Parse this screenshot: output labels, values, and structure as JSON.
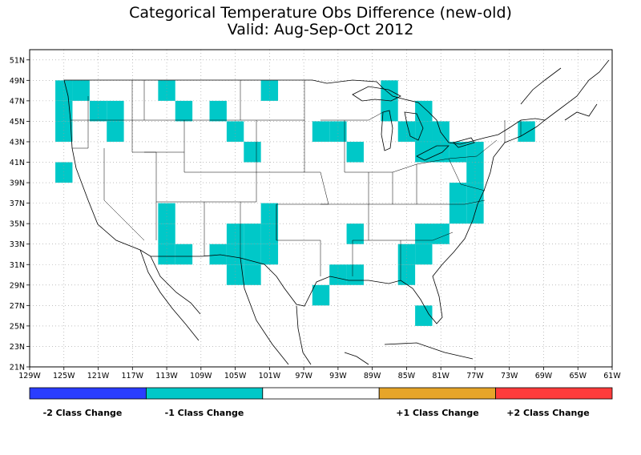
{
  "title": {
    "line1": "Categorical Temperature Obs Difference (new-old)",
    "line2": "Valid: Aug-Sep-Oct 2012"
  },
  "axes": {
    "lon_min": -129,
    "lon_max": -61,
    "lat_min": 21,
    "lat_max": 52,
    "x_ticks": [
      {
        "value": -129,
        "label": "129W"
      },
      {
        "value": -125,
        "label": "125W"
      },
      {
        "value": -121,
        "label": "121W"
      },
      {
        "value": -117,
        "label": "117W"
      },
      {
        "value": -113,
        "label": "113W"
      },
      {
        "value": -109,
        "label": "109W"
      },
      {
        "value": -105,
        "label": "105W"
      },
      {
        "value": -101,
        "label": "101W"
      },
      {
        "value": -97,
        "label": "97W"
      },
      {
        "value": -93,
        "label": "93W"
      },
      {
        "value": -89,
        "label": "89W"
      },
      {
        "value": -85,
        "label": "85W"
      },
      {
        "value": -81,
        "label": "81W"
      },
      {
        "value": -77,
        "label": "77W"
      },
      {
        "value": -73,
        "label": "73W"
      },
      {
        "value": -69,
        "label": "69W"
      },
      {
        "value": -65,
        "label": "65W"
      },
      {
        "value": -61,
        "label": "61W"
      }
    ],
    "y_ticks": [
      {
        "value": 21,
        "label": "21N"
      },
      {
        "value": 23,
        "label": "23N"
      },
      {
        "value": 25,
        "label": "25N"
      },
      {
        "value": 27,
        "label": "27N"
      },
      {
        "value": 29,
        "label": "29N"
      },
      {
        "value": 31,
        "label": "31N"
      },
      {
        "value": 33,
        "label": "33N"
      },
      {
        "value": 35,
        "label": "35N"
      },
      {
        "value": 37,
        "label": "37N"
      },
      {
        "value": 39,
        "label": "39N"
      },
      {
        "value": 41,
        "label": "41N"
      },
      {
        "value": 43,
        "label": "43N"
      },
      {
        "value": 45,
        "label": "45N"
      },
      {
        "value": 47,
        "label": "47N"
      },
      {
        "value": 49,
        "label": "49N"
      },
      {
        "value": 51,
        "label": "51N"
      }
    ],
    "grid": "dotted"
  },
  "legend": {
    "classes": [
      {
        "label": "-2 Class Change",
        "color": "#2a3dff"
      },
      {
        "label": "-1 Class Change",
        "color": "#00c8c8"
      },
      {
        "label": "",
        "color": "#ffffff"
      },
      {
        "label": "+1 Class Change",
        "color": "#e6a529"
      },
      {
        "label": "+2 Class Change",
        "color": "#ff3c3c"
      }
    ]
  },
  "cells_minus1": [
    [
      -125,
      48
    ],
    [
      -123,
      48
    ],
    [
      -125,
      46
    ],
    [
      -121,
      46
    ],
    [
      -119,
      46
    ],
    [
      -125,
      44
    ],
    [
      -119,
      44
    ],
    [
      -125,
      40
    ],
    [
      -113,
      48
    ],
    [
      -111,
      46
    ],
    [
      -107,
      46
    ],
    [
      -105,
      44
    ],
    [
      -103,
      42
    ],
    [
      -101,
      48
    ],
    [
      -95,
      44
    ],
    [
      -93,
      44
    ],
    [
      -91,
      42
    ],
    [
      -87,
      48
    ],
    [
      -87,
      46
    ],
    [
      -83,
      46
    ],
    [
      -85,
      44
    ],
    [
      -83,
      44
    ],
    [
      -81,
      44
    ],
    [
      -83,
      42
    ],
    [
      -81,
      42
    ],
    [
      -79,
      42
    ],
    [
      -77,
      42
    ],
    [
      -71,
      44
    ],
    [
      -77,
      40
    ],
    [
      -79,
      38
    ],
    [
      -77,
      38
    ],
    [
      -79,
      36
    ],
    [
      -77,
      36
    ],
    [
      -113,
      36
    ],
    [
      -113,
      34
    ],
    [
      -113,
      32
    ],
    [
      -111,
      32
    ],
    [
      -107,
      32
    ],
    [
      -105,
      32
    ],
    [
      -103,
      32
    ],
    [
      -101,
      32
    ],
    [
      -105,
      34
    ],
    [
      -103,
      34
    ],
    [
      -101,
      34
    ],
    [
      -101,
      36
    ],
    [
      -105,
      30
    ],
    [
      -103,
      30
    ],
    [
      -91,
      34
    ],
    [
      -93,
      30
    ],
    [
      -91,
      30
    ],
    [
      -95,
      28
    ],
    [
      -83,
      34
    ],
    [
      -81,
      34
    ],
    [
      -85,
      32
    ],
    [
      -83,
      32
    ],
    [
      -85,
      30
    ],
    [
      -83,
      26
    ]
  ]
}
